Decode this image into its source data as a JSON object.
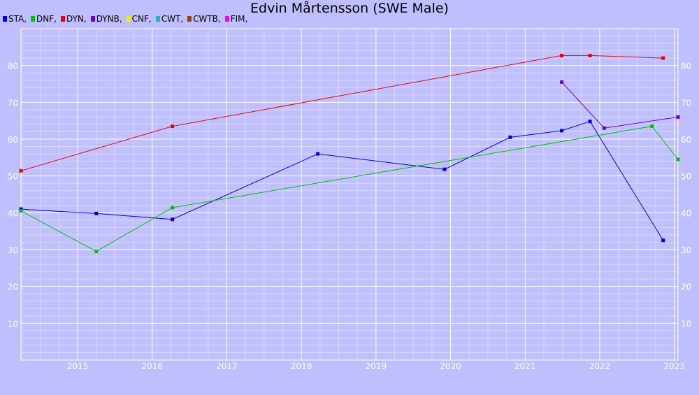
{
  "chart_data": {
    "type": "line",
    "title": "Edvin Mårtensson (SWE Male)",
    "xlabel": "",
    "ylabel": "",
    "x_ticks": [
      "2015",
      "2016",
      "2017",
      "2018",
      "2019",
      "2020",
      "2021",
      "2022",
      "2023"
    ],
    "y_ticks": [
      10,
      20,
      30,
      40,
      50,
      60,
      70,
      80
    ],
    "xlim": [
      2014.24,
      2023.05
    ],
    "ylim": [
      0,
      90
    ],
    "grid": true,
    "legend_position": "top-left",
    "legend": [
      {
        "label": "STA,",
        "color": "#0000dd"
      },
      {
        "label": "DNF,",
        "color": "#00c000"
      },
      {
        "label": "DYN,",
        "color": "#ee0000"
      },
      {
        "label": "DYNB,",
        "color": "#6a00e0"
      },
      {
        "label": "CNF,",
        "color": "#eeee00"
      },
      {
        "label": "CWT,",
        "color": "#20b0d0"
      },
      {
        "label": "CWTB,",
        "color": "#a04000"
      },
      {
        "label": "FIM,",
        "color": "#ff00ee"
      }
    ],
    "series": [
      {
        "name": "STA",
        "color": "#0000dd",
        "points": [
          [
            2014.24,
            41.0
          ],
          [
            2015.25,
            39.8
          ],
          [
            2016.27,
            38.2
          ],
          [
            2018.22,
            56.0
          ],
          [
            2019.92,
            51.8
          ],
          [
            2020.8,
            60.5
          ],
          [
            2021.49,
            62.3
          ],
          [
            2021.87,
            64.8
          ],
          [
            2022.85,
            32.5
          ]
        ]
      },
      {
        "name": "DNF",
        "color": "#00c000",
        "points": [
          [
            2014.24,
            40.5
          ],
          [
            2015.25,
            29.5
          ],
          [
            2016.27,
            41.4
          ],
          [
            2022.7,
            63.5
          ],
          [
            2023.05,
            54.5
          ]
        ]
      },
      {
        "name": "DYN",
        "color": "#ee0000",
        "points": [
          [
            2014.24,
            51.4
          ],
          [
            2016.27,
            63.5
          ],
          [
            2021.49,
            82.7
          ],
          [
            2021.87,
            82.7
          ],
          [
            2022.85,
            82.0
          ]
        ]
      },
      {
        "name": "DYNB",
        "color": "#6a00e0",
        "points": [
          [
            2021.49,
            75.5
          ],
          [
            2022.06,
            63.0
          ],
          [
            2023.05,
            66.0
          ]
        ]
      }
    ]
  }
}
